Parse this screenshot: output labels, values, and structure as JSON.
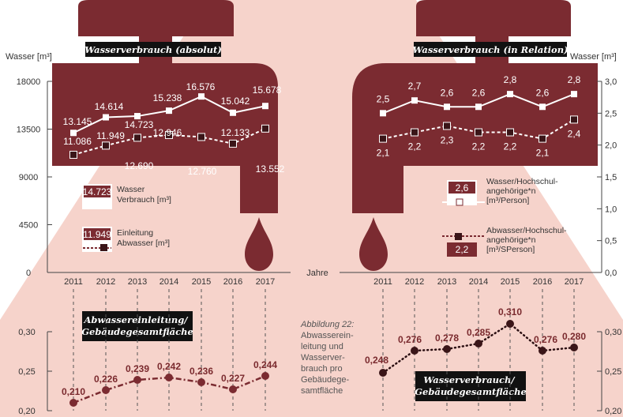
{
  "chart_data": [
    {
      "type": "line",
      "title": "Wasserverbrauch (absolut)",
      "ylabel": "Wasser [m³]",
      "xlabel": "Jahre",
      "ylim": [
        0,
        18000
      ],
      "yticks": [
        "0",
        "4500",
        "9000",
        "13500",
        "18000"
      ],
      "x": [
        "2011",
        "2012",
        "2013",
        "2014",
        "2015",
        "2016",
        "2017"
      ],
      "series": [
        {
          "name": "Wasser Verbrauch [m³]",
          "values": [
            13145,
            14614,
            14723,
            15238,
            16576,
            15042,
            15678
          ],
          "labels": [
            "13.145",
            "14.614",
            "14.723",
            "15.238",
            "16.576",
            "15.042",
            "15.678"
          ]
        },
        {
          "name": "Einleitung Abwasser [m³]",
          "values": [
            11086,
            11949,
            12690,
            12946,
            12760,
            12133,
            13552
          ],
          "labels": [
            "11.086",
            "11.949",
            "12.690",
            "12.946",
            "12.760",
            "12.133",
            "13.552"
          ]
        }
      ]
    },
    {
      "type": "line",
      "title": "Wasserverbrauch (in Relation)",
      "ylabel": "Wasser [m³]",
      "ylim": [
        0,
        3.0
      ],
      "yticks": [
        "0,0",
        "0,5",
        "1,0",
        "1,5",
        "2,0",
        "2,5",
        "3,0"
      ],
      "x": [
        "2011",
        "2012",
        "2013",
        "2014",
        "2015",
        "2016",
        "2017"
      ],
      "series": [
        {
          "name": "Wasser/Hochschul-angehörige*n [m³/Person]",
          "values": [
            2.5,
            2.7,
            2.6,
            2.6,
            2.8,
            2.6,
            2.8
          ],
          "labels": [
            "2,5",
            "2,7",
            "2,6",
            "2,6",
            "2,8",
            "2,6",
            "2,8"
          ]
        },
        {
          "name": "Abwasser/Hochschul-angehörige*n [m³/SPerson]",
          "values": [
            2.1,
            2.2,
            2.3,
            2.2,
            2.2,
            2.1,
            2.4
          ],
          "labels": [
            "2,1",
            "2,2",
            "2,3",
            "2,2",
            "2,2",
            "2,1",
            "2,4"
          ]
        }
      ]
    },
    {
      "type": "line",
      "title": "Abwassereinleitung/ Gebäudegesamtfläche",
      "ylim": [
        0.2,
        0.3
      ],
      "yticks": [
        "0,20",
        "0,25",
        "0,30"
      ],
      "x": [
        "2011",
        "2012",
        "2013",
        "2014",
        "2015",
        "2016",
        "2017"
      ],
      "series": [
        {
          "values": [
            0.21,
            0.226,
            0.239,
            0.242,
            0.236,
            0.227,
            0.244
          ],
          "labels": [
            "0,210",
            "0,226",
            "0,239",
            "0,242",
            "0,236",
            "0,227",
            "0,244"
          ]
        }
      ]
    },
    {
      "type": "line",
      "title": "Wasserverbrauch/ Gebäudegesamtfläche",
      "ylim": [
        0.2,
        0.3
      ],
      "yticks": [
        "0,20",
        "0,25",
        "0,30"
      ],
      "x": [
        "2011",
        "2012",
        "2013",
        "2014",
        "2015",
        "2016",
        "2017"
      ],
      "series": [
        {
          "values": [
            0.248,
            0.276,
            0.278,
            0.285,
            0.31,
            0.276,
            0.28
          ],
          "labels": [
            "0,248",
            "0,276",
            "0,278",
            "0,285",
            "0,310",
            "0,276",
            "0,280"
          ]
        }
      ]
    }
  ],
  "legend": {
    "water_value": "14.723",
    "water_text": [
      "Wasser",
      "Verbrauch [m³]"
    ],
    "waste_value": "11.949",
    "waste_text": [
      "Einleitung",
      "Abwasser [m³]"
    ],
    "rel_water_value": "2,6",
    "rel_water_text": [
      "Wasser/Hochschul-",
      "angehörige*n",
      "[m³/Person]"
    ],
    "rel_waste_value": "2,2",
    "rel_waste_text": [
      "Abwasser/Hochschul-",
      "angehörige*n",
      "[m³/SPerson]"
    ]
  },
  "caption": [
    "Abbildung 22:",
    "Abwasserein-",
    "leitung und",
    "Wasserver-",
    "brauch pro",
    "Gebäudege-",
    "samtfläche"
  ],
  "colors": {
    "maroon": "#7b2b31",
    "pink": "#f6d3cb",
    "white": "#ffffff",
    "black": "#111111"
  }
}
